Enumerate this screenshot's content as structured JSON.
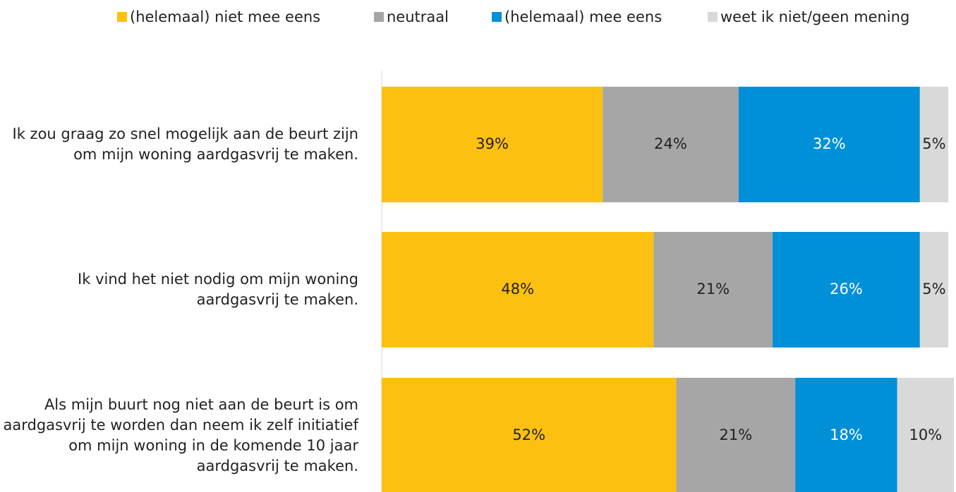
{
  "chart_data": {
    "type": "stacked-bar-horizontal",
    "categories": [
      "Ik zou graag zo snel mogelijk aan de beurt zijn om mijn woning aardgasvrij te maken.",
      "Ik vind het niet nodig om mijn woning aardgasvrij te maken.",
      "Als mijn buurt nog niet aan de beurt is om aardgasvrij te worden dan neem ik zelf initiatief om mijn woning in de komende 10 jaar aardgasvrij te maken."
    ],
    "series": [
      {
        "name": "(helemaal) niet mee eens",
        "color": "#FCC010",
        "values": [
          39,
          48,
          52
        ],
        "value_labels": [
          "39%",
          "48%",
          "52%"
        ]
      },
      {
        "name": "neutraal",
        "color": "#A6A6A6",
        "values": [
          24,
          21,
          21
        ],
        "value_labels": [
          "24%",
          "21%",
          "21%"
        ]
      },
      {
        "name": "(helemaal) mee eens",
        "color": "#0090D8",
        "values": [
          32,
          26,
          18
        ],
        "value_labels": [
          "32%",
          "26%",
          "18%"
        ]
      },
      {
        "name": "weet ik niet/geen mening",
        "color": "#D9D9D9",
        "values": [
          5,
          5,
          10
        ],
        "value_labels": [
          "5%",
          "5%",
          "10%"
        ]
      }
    ],
    "xlim": [
      0,
      101
    ],
    "legend": "top"
  }
}
